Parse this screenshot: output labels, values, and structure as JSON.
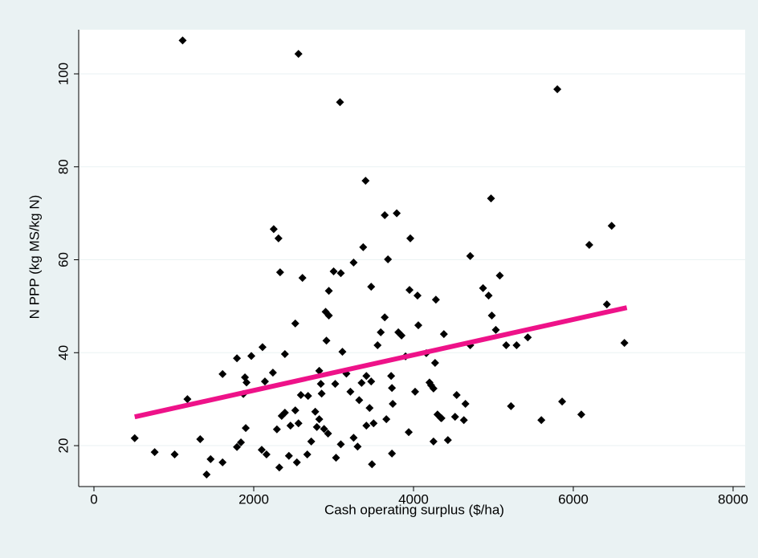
{
  "chart_data": {
    "type": "scatter",
    "x_label": "Cash operating surplus ($/ha)",
    "y_label": "N PPP (kg MS/kg N)",
    "xlim": [
      -191,
      8151
    ],
    "ylim": [
      11.2,
      109.5
    ],
    "xticks": [
      0,
      2000,
      4000,
      6000,
      8000
    ],
    "yticks": [
      20,
      40,
      60,
      80,
      100
    ],
    "grid": true,
    "series": [
      {
        "type": "scatter",
        "color": "#000000",
        "x": [
          510,
          760,
          1010,
          1110,
          1170,
          1330,
          1410,
          1460,
          1610,
          1610,
          1790,
          1790,
          1840,
          1870,
          1890,
          1910,
          1900,
          1970,
          2110,
          2100,
          2160,
          2140,
          2240,
          2250,
          2310,
          2290,
          2330,
          2320,
          2350,
          2390,
          2390,
          2440,
          2460,
          2520,
          2520,
          2540,
          2560,
          2610,
          2590,
          2560,
          2670,
          2680,
          2720,
          2770,
          2790,
          2820,
          2820,
          2840,
          2850,
          2880,
          2900,
          2940,
          2940,
          2910,
          2930,
          3000,
          3020,
          3030,
          3080,
          3090,
          3090,
          3110,
          3160,
          3210,
          3250,
          3250,
          3300,
          3320,
          3350,
          3370,
          3400,
          3410,
          3410,
          3450,
          3470,
          3470,
          3480,
          3500,
          3550,
          3590,
          3640,
          3640,
          3660,
          3680,
          3720,
          3730,
          3730,
          3790,
          3810,
          3850,
          3740,
          3900,
          3960,
          3950,
          3940,
          4020,
          4060,
          4050,
          4160,
          4200,
          4220,
          4250,
          4270,
          4280,
          4250,
          4300,
          4340,
          4380,
          4350,
          4430,
          4520,
          4540,
          4630,
          4650,
          4710,
          4710,
          4870,
          4940,
          4970,
          4980,
          5030,
          5080,
          5160,
          5220,
          5290,
          5430,
          5600,
          5800,
          5860,
          6100,
          6200,
          6420,
          6480,
          6640
        ],
        "values": [
          21.6,
          18.6,
          18.1,
          107.2,
          30.0,
          21.4,
          13.8,
          17.1,
          16.4,
          35.4,
          38.8,
          19.7,
          20.7,
          31.1,
          34.7,
          33.6,
          23.8,
          39.3,
          41.2,
          19.1,
          18.1,
          33.8,
          35.7,
          66.6,
          64.6,
          23.5,
          57.3,
          15.3,
          26.4,
          39.7,
          27.1,
          17.8,
          24.3,
          46.3,
          27.6,
          16.4,
          104.3,
          56.1,
          30.9,
          24.8,
          18.1,
          30.7,
          20.9,
          27.3,
          24.0,
          36.1,
          25.7,
          33.3,
          31.2,
          23.6,
          48.8,
          53.3,
          48.0,
          42.6,
          22.6,
          57.5,
          33.3,
          17.4,
          93.9,
          57.1,
          20.3,
          40.2,
          35.5,
          31.6,
          59.4,
          21.7,
          19.8,
          29.8,
          33.5,
          62.7,
          77.0,
          35.0,
          24.3,
          28.1,
          33.8,
          54.2,
          16.0,
          24.8,
          41.6,
          44.4,
          69.6,
          47.6,
          25.7,
          60.1,
          35.0,
          32.4,
          18.3,
          70.0,
          44.4,
          43.7,
          29.0,
          39.2,
          64.6,
          53.5,
          22.9,
          31.6,
          45.9,
          52.3,
          39.9,
          33.6,
          33.0,
          32.3,
          37.8,
          51.4,
          20.9,
          26.7,
          26.0,
          44.0,
          25.9,
          21.2,
          26.2,
          30.9,
          25.5,
          29.0,
          60.8,
          41.6,
          53.9,
          52.3,
          73.2,
          48.0,
          44.9,
          56.6,
          41.6,
          28.5,
          41.6,
          43.3,
          25.5,
          96.7,
          29.5,
          26.7,
          63.2,
          50.4,
          67.3,
          42.1
        ]
      },
      {
        "type": "line",
        "color": "#ee1289",
        "x": [
          510,
          6670
        ],
        "values": [
          26.2,
          49.7
        ]
      }
    ]
  }
}
